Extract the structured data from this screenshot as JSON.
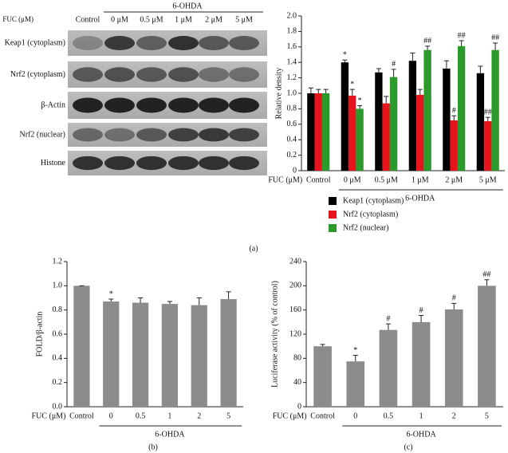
{
  "blot": {
    "group_label": "6-OHDA",
    "xlabel": "FUC (μM)",
    "lanes": [
      "Control",
      "0 μM",
      "0.5 μM",
      "1 μM",
      "2 μM",
      "5 μM"
    ],
    "rows": [
      "Keap1 (cytoplasm)",
      "Nrf2 (cytoplasm)",
      "β-Actin",
      "Nrf2 (nuclear)",
      "Histone"
    ]
  },
  "chart_data": [
    {
      "type": "bar",
      "panel_label": "(a)",
      "ylabel": "Relative density",
      "xlabel": "FUC (μM)",
      "group_label": "6-OHDA",
      "categories": [
        "Control",
        "0 μM",
        "0.5 μM",
        "1 μM",
        "2 μM",
        "5 μM"
      ],
      "ylim": [
        0,
        2.0
      ],
      "yticks": [
        0,
        0.2,
        0.4,
        0.6,
        0.8,
        {
          "value": 1.0,
          "label": "1.0"
        },
        1.2,
        1.4,
        1.6,
        1.8,
        {
          "value": 2.0,
          "label": "2.0"
        }
      ],
      "series": [
        {
          "name": "Keap1 (cytoplasm)",
          "color": "#000000",
          "values": [
            1.0,
            1.4,
            1.27,
            1.42,
            1.32,
            1.26
          ],
          "errors": [
            0.07,
            0.03,
            0.05,
            0.1,
            0.1,
            0.09
          ],
          "annotations": [
            null,
            "*",
            null,
            null,
            null,
            null
          ]
        },
        {
          "name": "Nrf2 (cytoplasm)",
          "color": "#e8141b",
          "values": [
            1.0,
            0.97,
            0.87,
            0.98,
            0.65,
            0.64
          ],
          "errors": [
            0.05,
            0.08,
            0.09,
            0.07,
            0.06,
            0.05
          ],
          "annotations": [
            null,
            "*",
            null,
            null,
            "#",
            "##"
          ]
        },
        {
          "name": "Nrf2 (nuclear)",
          "color": "#2a9a2a",
          "values": [
            1.0,
            0.8,
            1.21,
            1.56,
            1.61,
            1.56
          ],
          "errors": [
            0.05,
            0.04,
            0.1,
            0.05,
            0.07,
            0.09
          ],
          "annotations": [
            null,
            "*",
            "#",
            "##",
            "##",
            "##"
          ]
        }
      ]
    },
    {
      "type": "bar",
      "panel_label": "(b)",
      "ylabel": "FOLD/β-actin",
      "xlabel": "FUC (μM)",
      "group_label": "6-OHDA",
      "categories": [
        "Control",
        "0",
        "0.5",
        "1",
        "2",
        "5"
      ],
      "ylim": [
        0,
        1.2
      ],
      "yticks": [
        {
          "value": 0,
          "label": "0.0"
        },
        0.2,
        0.4,
        0.6,
        0.8,
        {
          "value": 1.0,
          "label": "1.0"
        },
        1.2
      ],
      "color": "#8c8c8c",
      "values": [
        1.0,
        0.87,
        0.86,
        0.85,
        0.84,
        0.89
      ],
      "errors": [
        0,
        0.02,
        0.04,
        0.02,
        0.06,
        0.06
      ],
      "annotations": [
        null,
        "*",
        null,
        null,
        null,
        null
      ]
    },
    {
      "type": "bar",
      "panel_label": "(c)",
      "ylabel": "Luciferase activity (% of control)",
      "xlabel": "FUC (μM)",
      "group_label": "6-OHDA",
      "categories": [
        "Control",
        "0",
        "0.5",
        "1",
        "2",
        "5"
      ],
      "ylim": [
        0,
        240
      ],
      "yticks": [
        0,
        40,
        80,
        120,
        160,
        200,
        240
      ],
      "color": "#8c8c8c",
      "values": [
        100,
        75,
        127,
        140,
        161,
        200
      ],
      "errors": [
        3,
        10,
        10,
        11,
        10,
        10
      ],
      "annotations": [
        null,
        "*",
        "#",
        "#",
        "#",
        "##"
      ]
    }
  ]
}
